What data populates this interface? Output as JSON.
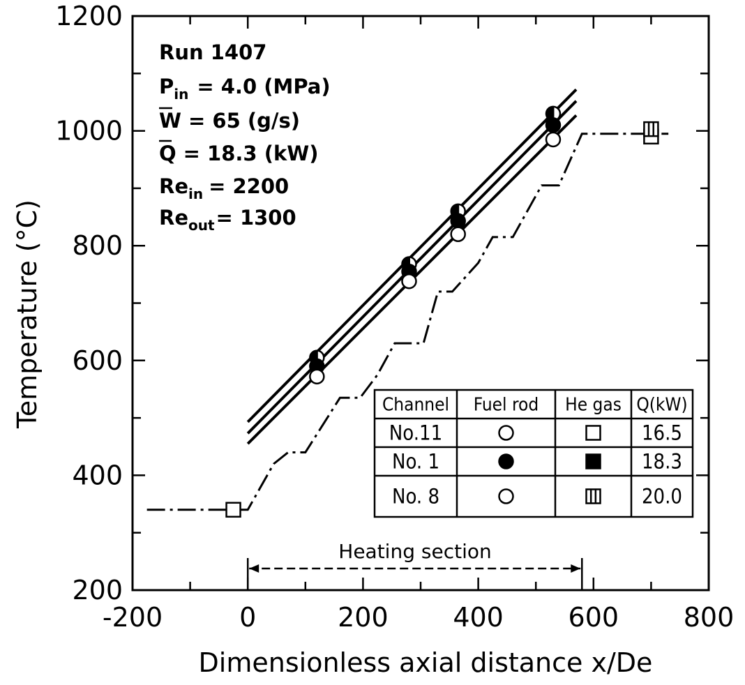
{
  "chart_data": {
    "type": "line",
    "xlabel": "Dimensionless axial distance x/De",
    "ylabel": "Temperature (°C)",
    "xlim": [
      -200,
      800
    ],
    "ylim": [
      200,
      1200
    ],
    "x_ticks": [
      "-200",
      "0",
      "200",
      "400",
      "600",
      "800"
    ],
    "y_ticks": [
      "200",
      "400",
      "600",
      "800",
      "1000",
      "1200"
    ],
    "annotation": {
      "run": "Run 1407",
      "pin_label": "P",
      "pin_sub": "in",
      "pin_value": "= 4.0 (MPa)",
      "w_label": "W",
      "w_value": "= 65 (g/s)",
      "q_label": "Q",
      "q_value": "= 18.3 (kW)",
      "rein_label": "Re",
      "rein_sub": "in",
      "rein_value": "= 2200",
      "reout_label": "Re",
      "reout_sub": "out",
      "reout_value": "= 1300"
    },
    "heating_section_label": "Heating section",
    "heating_section_range": [
      0,
      580
    ],
    "fuel_rod_series": [
      {
        "marker": "half-circle",
        "x": [
          120,
          280,
          365,
          530
        ],
        "y": [
          605,
          768,
          860,
          1030
        ]
      },
      {
        "marker": "filled-circle",
        "x": [
          120,
          280,
          365,
          530
        ],
        "y": [
          590,
          755,
          843,
          1010
        ]
      },
      {
        "marker": "open-circle",
        "x": [
          120,
          280,
          365,
          530
        ],
        "y": [
          572,
          738,
          820,
          985
        ]
      }
    ],
    "fuel_rod_fit_lines": [
      {
        "x": [
          0,
          570
        ],
        "y": [
          493,
          1072
        ]
      },
      {
        "x": [
          0,
          570
        ],
        "y": [
          473,
          1052
        ]
      },
      {
        "x": [
          0,
          570
        ],
        "y": [
          455,
          1027
        ]
      }
    ],
    "he_gas_series": [
      {
        "marker": "open-square",
        "x": [
          -25,
          700
        ],
        "y": [
          340,
          990
        ]
      },
      {
        "marker": "half-square",
        "x": [
          700
        ],
        "y": [
          1003
        ]
      }
    ],
    "he_gas_calc_line": {
      "x": [
        -175,
        0,
        45,
        70,
        100,
        160,
        195,
        225,
        255,
        305,
        330,
        355,
        400,
        425,
        460,
        510,
        540,
        580,
        730
      ],
      "y": [
        340,
        340,
        420,
        440,
        440,
        535,
        535,
        575,
        630,
        630,
        720,
        720,
        770,
        815,
        815,
        905,
        905,
        995,
        995
      ]
    },
    "legend_table": {
      "headers": [
        "Channel",
        "Fuel rod",
        "He gas",
        "Q(kW)"
      ],
      "rows": [
        {
          "channel": "No.11",
          "fuel_marker": "open-circle",
          "gas_marker": "open-square",
          "q": "16.5"
        },
        {
          "channel": "No. 1",
          "fuel_marker": "filled-circle",
          "gas_marker": "filled-square",
          "q": "18.3"
        },
        {
          "channel": "No. 8",
          "fuel_marker": "open-circle",
          "gas_marker": "half-square",
          "q": "20.0"
        }
      ]
    }
  }
}
